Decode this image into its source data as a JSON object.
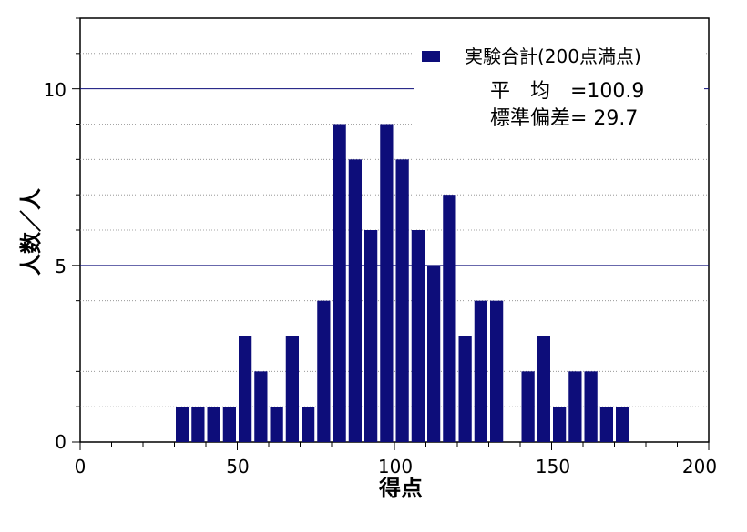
{
  "chart_data": {
    "type": "bar",
    "x": [
      32.5,
      37.5,
      42.5,
      47.5,
      52.5,
      57.5,
      62.5,
      67.5,
      72.5,
      77.5,
      82.5,
      87.5,
      92.5,
      97.5,
      102.5,
      107.5,
      112.5,
      117.5,
      122.5,
      127.5,
      132.5,
      137.5,
      142.5,
      147.5,
      152.5,
      157.5,
      162.5,
      167.5,
      172.5
    ],
    "values": [
      1,
      1,
      1,
      1,
      3,
      2,
      1,
      3,
      1,
      4,
      9,
      8,
      6,
      9,
      8,
      6,
      5,
      7,
      3,
      4,
      4,
      0,
      2,
      3,
      1,
      2,
      2,
      1,
      1
    ],
    "bin_width": 5,
    "xlabel": "得点",
    "ylabel": "人数／人",
    "xlim": [
      0,
      200
    ],
    "ylim": [
      0,
      12
    ],
    "x_ticks": [
      "0",
      "50",
      "100",
      "150",
      "200"
    ],
    "y_ticks": [
      "0",
      "5",
      "10"
    ],
    "legend": "実験合計(200点満点)",
    "legend_position": "top-right",
    "annotations": [
      "平　均　=100.9",
      "標準偏差= 29.7"
    ],
    "bar_color": "#0d0d7a",
    "major_grid_color": "#0d0d7a",
    "grid": "dotted minor horizontal lines every 1"
  }
}
